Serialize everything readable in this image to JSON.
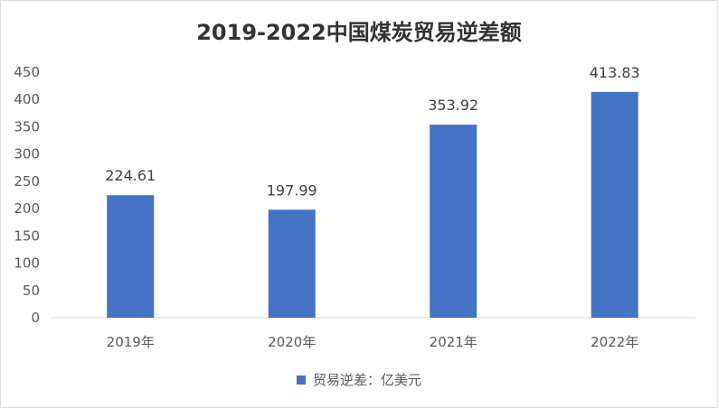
{
  "chart_data": {
    "type": "bar",
    "title": "2019-2022中国煤炭贸易逆差额",
    "categories": [
      "2019年",
      "2020年",
      "2021年",
      "2022年"
    ],
    "series": [
      {
        "name": "贸易逆差：亿美元",
        "values": [
          224.61,
          197.99,
          353.92,
          413.83
        ],
        "color": "#4472c4"
      }
    ],
    "data_labels": [
      "224.61",
      "197.99",
      "353.92",
      "413.83"
    ],
    "ylim": [
      0,
      450
    ],
    "yticks": [
      0,
      50,
      100,
      150,
      200,
      250,
      300,
      350,
      400,
      450
    ],
    "grid": false,
    "legend_position": "bottom",
    "xlabel": "",
    "ylabel": ""
  }
}
